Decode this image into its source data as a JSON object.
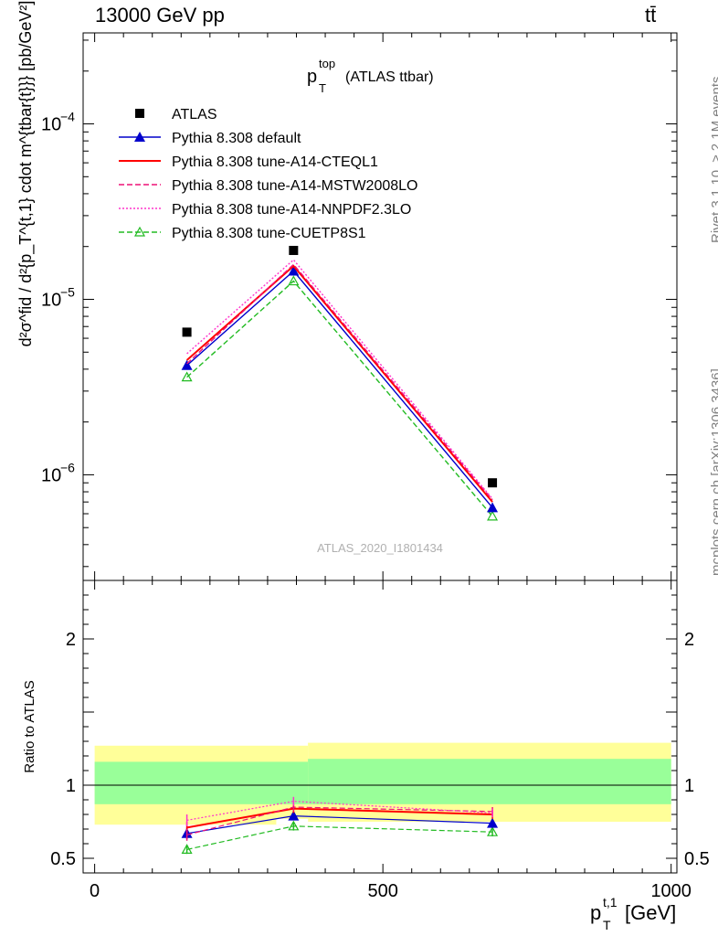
{
  "header": {
    "energy": "13000 GeV pp",
    "process": "tt̄"
  },
  "side_labels": {
    "rivet": "Rivet 3.1.10, ≥ 2.1M events",
    "mcplots": "mcplots.cern.ch [arXiv:1306.3436]"
  },
  "chart_data": [
    {
      "type": "line",
      "title": "p_T^top (ATLAS ttbar)",
      "title_main": "p",
      "title_sup": "top",
      "title_sub": "T",
      "title_rest": "(ATLAS ttbar)",
      "watermark": "ATLAS_2020_I1801434",
      "ylabel": "d²σ^fid / d²{p_T^{t,1} cdot m^{tbar{t}}} [pb/GeV²]",
      "yscale": "log",
      "ylim": [
        2.5e-07,
        0.00033
      ],
      "xlim": [
        -20,
        1010
      ],
      "yticks": [
        {
          "value": 1e-06,
          "label": "10",
          "exp": "−6"
        },
        {
          "value": 1e-05,
          "label": "10",
          "exp": "−5"
        },
        {
          "value": 0.0001,
          "label": "10",
          "exp": "−4"
        }
      ],
      "legend_position": "top-left",
      "x": [
        160,
        345,
        690
      ],
      "series": [
        {
          "name": "ATLAS",
          "values": [
            6.5e-06,
            1.9e-05,
            9e-07
          ],
          "color": "#000000",
          "marker": "square",
          "line": "none"
        },
        {
          "name": "Pythia 8.308 default",
          "values": [
            4.2e-06,
            1.45e-05,
            6.5e-07
          ],
          "color": "#0000cc",
          "marker": "triangle",
          "line": "solid"
        },
        {
          "name": "Pythia 8.308 tune-A14-CTEQL1",
          "values": [
            4.5e-06,
            1.55e-05,
            7e-07
          ],
          "color": "#ff0000",
          "marker": "none",
          "line": "solid"
        },
        {
          "name": "Pythia 8.308 tune-A14-MSTW2008LO",
          "values": [
            4.3e-06,
            1.58e-05,
            7.2e-07
          ],
          "color": "#ee1177",
          "marker": "none",
          "line": "dashed"
        },
        {
          "name": "Pythia 8.308 tune-A14-NNPDF2.3LO",
          "values": [
            4.9e-06,
            1.68e-05,
            7.3e-07
          ],
          "color": "#ff33cc",
          "marker": "none",
          "line": "dotted"
        },
        {
          "name": "Pythia 8.308 tune-CUETP8S1",
          "values": [
            3.6e-06,
            1.27e-05,
            5.8e-07
          ],
          "color": "#22bb22",
          "marker": "open-triangle",
          "line": "dashed"
        }
      ]
    },
    {
      "type": "line",
      "ylabel": "Ratio to ATLAS",
      "xlabel": "p_T^{t,1} [GeV]",
      "xlabel_main": "p",
      "xlabel_sup": "t,1",
      "xlabel_sub": "T",
      "xlabel_rest": "[GeV]",
      "ylim": [
        0.4,
        2.4
      ],
      "xlim": [
        -20,
        1010
      ],
      "yticks": [
        0.5,
        1,
        2
      ],
      "xticks": [
        0,
        500,
        1000
      ],
      "bins": [
        [
          0,
          370
        ],
        [
          370,
          1000
        ]
      ],
      "band_yellow": [
        [
          0.73,
          1.27
        ],
        [
          0.75,
          1.29
        ]
      ],
      "band_green": [
        [
          0.87,
          1.16
        ],
        [
          0.87,
          1.18
        ]
      ],
      "yellow_notch": {
        "x": [
          315,
          370
        ],
        "y": [
          0.73,
          0.77
        ]
      },
      "x": [
        160,
        345,
        690
      ],
      "series": [
        {
          "name": "Pythia 8.308 default",
          "values": [
            0.67,
            0.79,
            0.74
          ],
          "errors": [
            0.04,
            0.03,
            0.03
          ],
          "color": "#0000cc",
          "marker": "triangle",
          "line": "solid"
        },
        {
          "name": "Pythia 8.308 tune-A14-CTEQL1",
          "values": [
            0.71,
            0.84,
            0.8
          ],
          "errors": [
            0.04,
            0.03,
            0.03
          ],
          "color": "#ff0000",
          "marker": "none",
          "line": "solid"
        },
        {
          "name": "Pythia 8.308 tune-A14-MSTW2008LO",
          "values": [
            0.66,
            0.85,
            0.82
          ],
          "errors": [
            0.04,
            0.03,
            0.03
          ],
          "color": "#ee1177",
          "marker": "none",
          "line": "dashed"
        },
        {
          "name": "Pythia 8.308 tune-A14-NNPDF2.3LO",
          "values": [
            0.76,
            0.89,
            0.81
          ],
          "errors": [
            0.04,
            0.03,
            0.03
          ],
          "color": "#ff33cc",
          "marker": "none",
          "line": "dotted"
        },
        {
          "name": "Pythia 8.308 tune-CUETP8S1",
          "values": [
            0.56,
            0.72,
            0.68
          ],
          "errors": [
            0.03,
            0.03,
            0.03
          ],
          "color": "#22bb22",
          "marker": "open-triangle",
          "line": "dashed"
        }
      ]
    }
  ]
}
